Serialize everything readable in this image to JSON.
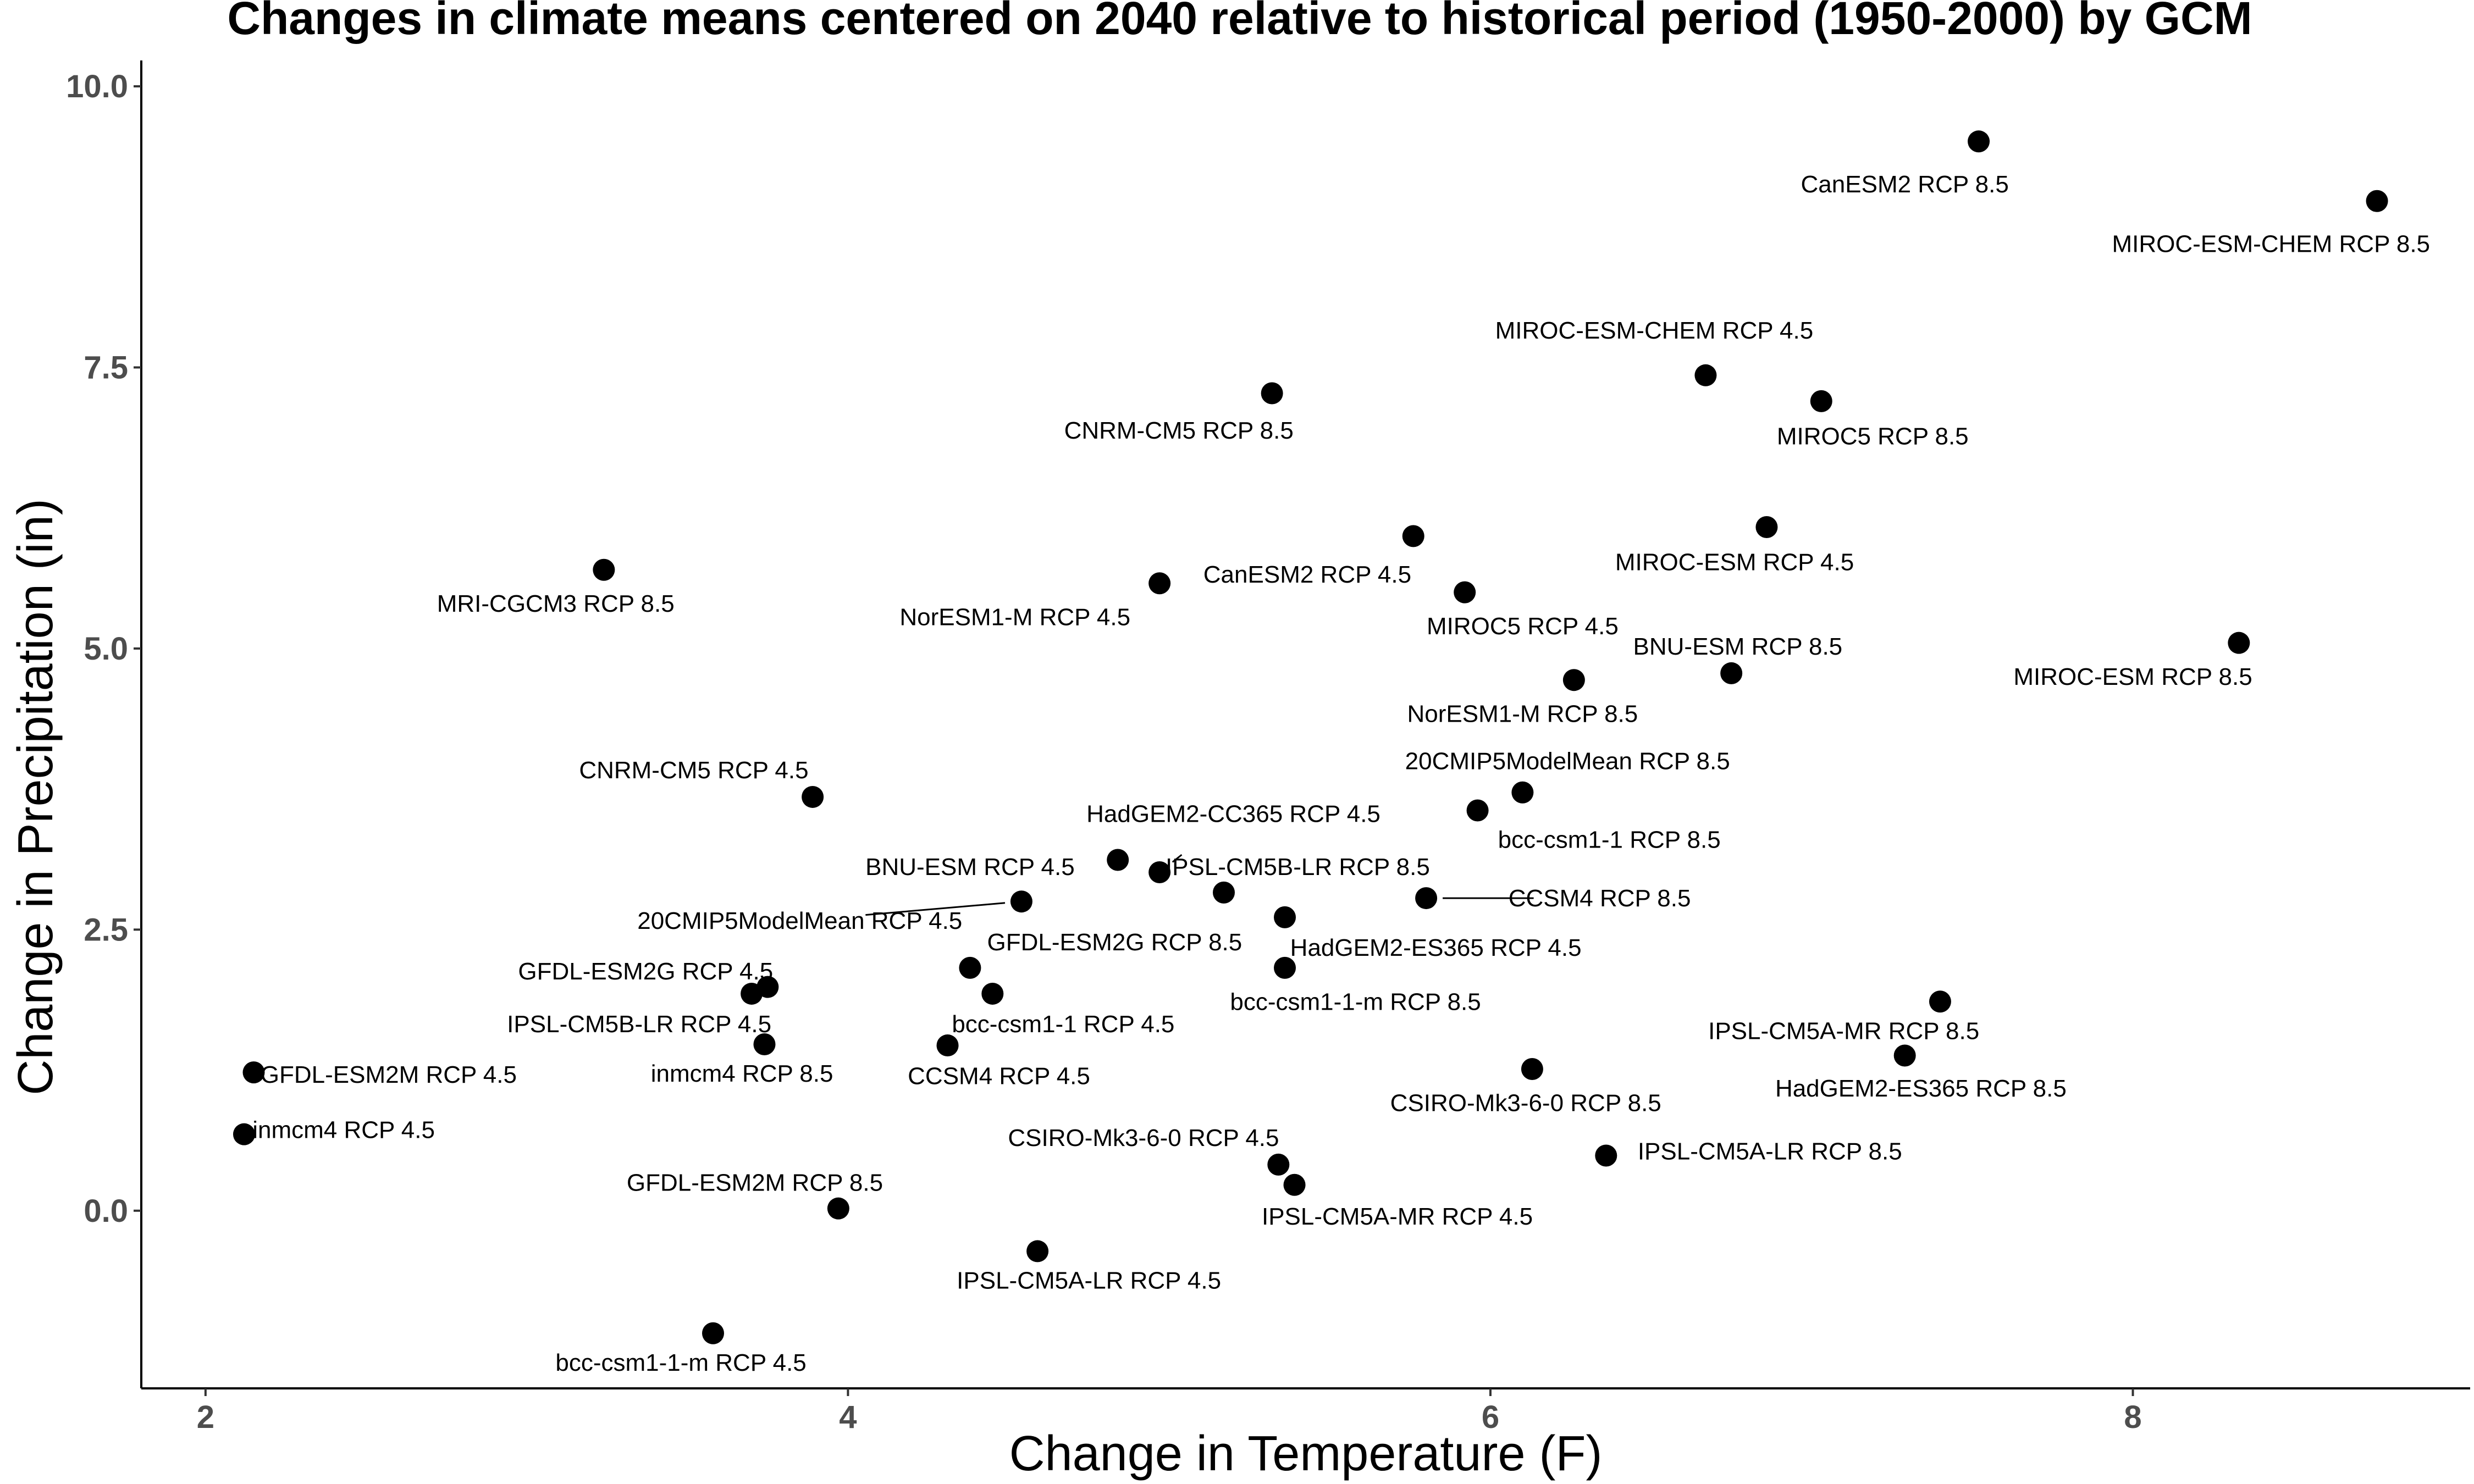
{
  "chart_data": {
    "type": "scatter",
    "title": "Changes in climate means centered on 2040 relative to historical period (1950-2000) by GCM",
    "xlabel": "Change in Temperature (F)",
    "ylabel": "Change in Precipitation (in)",
    "xlim": [
      1.8,
      9.05
    ],
    "ylim": [
      -1.58,
      10.23
    ],
    "xticks": [
      2,
      4,
      6,
      8
    ],
    "xtick_labels": [
      "2",
      "4",
      "6",
      "8"
    ],
    "yticks": [
      0,
      2.5,
      5,
      7.5,
      10
    ],
    "ytick_labels": [
      "0.0",
      "2.5",
      "5.0",
      "7.5",
      "10.0"
    ],
    "grid": false,
    "legend": "none",
    "point_color": "#000000",
    "points": [
      {
        "label": "CanESM2 RCP 8.5",
        "x": 7.52,
        "y": 9.51,
        "lx": 7.29,
        "ly": 9.13
      },
      {
        "label": "MIROC-ESM-CHEM RCP 8.5",
        "x": 8.76,
        "y": 8.98,
        "lx": 8.43,
        "ly": 8.6
      },
      {
        "label": "MIROC-ESM-CHEM RCP 4.5",
        "x": 6.67,
        "y": 7.43,
        "lx": 6.51,
        "ly": 7.83
      },
      {
        "label": "MIROC5 RCP 8.5",
        "x": 7.03,
        "y": 7.2,
        "lx": 7.19,
        "ly": 6.89
      },
      {
        "label": "CNRM-CM5 RCP 8.5",
        "x": 5.32,
        "y": 7.27,
        "lx": 5.03,
        "ly": 6.94
      },
      {
        "label": "MIROC-ESM RCP 4.5",
        "x": 6.86,
        "y": 6.08,
        "lx": 6.76,
        "ly": 5.77
      },
      {
        "label": "CanESM2 RCP 4.5",
        "x": 5.76,
        "y": 6.0,
        "lx": 5.43,
        "ly": 5.66
      },
      {
        "label": "MRI-CGCM3 RCP 8.5",
        "x": 3.24,
        "y": 5.7,
        "lx": 3.09,
        "ly": 5.4
      },
      {
        "label": "NorESM1-M RCP 4.5",
        "x": 4.97,
        "y": 5.58,
        "lx": 4.52,
        "ly": 5.28
      },
      {
        "label": "MIROC5 RCP 4.5",
        "x": 5.92,
        "y": 5.5,
        "lx": 6.1,
        "ly": 5.2
      },
      {
        "label": "BNU-ESM RCP 8.5",
        "x": 6.75,
        "y": 4.78,
        "lx": 6.77,
        "ly": 5.02
      },
      {
        "label": "MIROC-ESM RCP 8.5",
        "x": 8.33,
        "y": 5.05,
        "lx": 8.0,
        "ly": 4.75
      },
      {
        "label": "NorESM1-M RCP 8.5",
        "x": 6.26,
        "y": 4.72,
        "lx": 6.1,
        "ly": 4.42
      },
      {
        "label": "20CMIP5ModelMean RCP 8.5",
        "x": 6.1,
        "y": 3.72,
        "lx": 6.24,
        "ly": 4.0
      },
      {
        "label": "bcc-csm1-1 RCP 8.5",
        "x": 5.96,
        "y": 3.56,
        "lx": 6.37,
        "ly": 3.3
      },
      {
        "label": "CNRM-CM5 RCP 4.5",
        "x": 3.89,
        "y": 3.68,
        "lx": 3.52,
        "ly": 3.92
      },
      {
        "label": "HadGEM2-CC365 RCP 4.5",
        "x": 4.97,
        "y": 3.01,
        "lx": 5.2,
        "ly": 3.53,
        "leader": true
      },
      {
        "label": "BNU-ESM RCP 4.5",
        "x": 4.84,
        "y": 3.12,
        "lx": 4.38,
        "ly": 3.06
      },
      {
        "label": "IPSL-CM5B-LR RCP 8.5",
        "x": 5.17,
        "y": 2.83,
        "lx": 5.4,
        "ly": 3.06
      },
      {
        "label": "20CMIP5ModelMean RCP 4.5",
        "x": 4.54,
        "y": 2.75,
        "lx": 3.85,
        "ly": 2.58,
        "leader": true
      },
      {
        "label": "CCSM4 RCP 8.5",
        "x": 5.8,
        "y": 2.78,
        "lx": 6.34,
        "ly": 2.78,
        "leader": true
      },
      {
        "label": "HadGEM2-ES365 RCP 4.5",
        "x": 5.36,
        "y": 2.61,
        "lx": 5.83,
        "ly": 2.34
      },
      {
        "label": "GFDL-ESM2G RCP 8.5",
        "x": 4.38,
        "y": 2.16,
        "lx": 4.83,
        "ly": 2.39
      },
      {
        "label": "bcc-csm1-1-m RCP 8.5",
        "x": 5.36,
        "y": 2.16,
        "lx": 5.58,
        "ly": 1.86
      },
      {
        "label": "GFDL-ESM2G RCP 4.5",
        "x": 3.75,
        "y": 1.99,
        "lx": 3.37,
        "ly": 2.13
      },
      {
        "label": "IPSL-CM5B-LR RCP 4.5",
        "x": 3.7,
        "y": 1.93,
        "lx": 3.35,
        "ly": 1.66
      },
      {
        "label": "bcc-csm1-1 RCP 4.5",
        "x": 4.45,
        "y": 1.93,
        "lx": 4.67,
        "ly": 1.66
      },
      {
        "label": "inmcm4 RCP 8.5",
        "x": 3.74,
        "y": 1.48,
        "lx": 3.67,
        "ly": 1.22
      },
      {
        "label": "CCSM4 RCP 4.5",
        "x": 4.31,
        "y": 1.47,
        "lx": 4.47,
        "ly": 1.2
      },
      {
        "label": "GFDL-ESM2M RCP 4.5",
        "x": 2.15,
        "y": 1.23,
        "lx": 2.57,
        "ly": 1.21
      },
      {
        "label": "CSIRO-Mk3-6-0 RCP 8.5",
        "x": 6.13,
        "y": 1.26,
        "lx": 6.11,
        "ly": 0.96
      },
      {
        "label": "IPSL-CM5A-MR RCP 8.5",
        "x": 7.4,
        "y": 1.86,
        "lx": 7.1,
        "ly": 1.6
      },
      {
        "label": "HadGEM2-ES365 RCP 8.5",
        "x": 7.29,
        "y": 1.38,
        "lx": 7.34,
        "ly": 1.09
      },
      {
        "label": "inmcm4 RCP 4.5",
        "x": 2.12,
        "y": 0.68,
        "lx": 2.43,
        "ly": 0.72
      },
      {
        "label": "CSIRO-Mk3-6-0 RCP 4.5",
        "x": 5.34,
        "y": 0.41,
        "lx": 4.92,
        "ly": 0.65
      },
      {
        "label": "IPSL-CM5A-LR RCP 8.5",
        "x": 6.36,
        "y": 0.49,
        "lx": 6.87,
        "ly": 0.53
      },
      {
        "label": "IPSL-CM5A-MR RCP 4.5",
        "x": 5.39,
        "y": 0.23,
        "lx": 5.71,
        "ly": -0.05
      },
      {
        "label": "GFDL-ESM2M RCP 8.5",
        "x": 3.97,
        "y": 0.02,
        "lx": 3.71,
        "ly": 0.25
      },
      {
        "label": "IPSL-CM5A-LR RCP 4.5",
        "x": 4.59,
        "y": -0.36,
        "lx": 4.75,
        "ly": -0.62
      },
      {
        "label": "bcc-csm1-1-m RCP 4.5",
        "x": 3.58,
        "y": -1.09,
        "lx": 3.48,
        "ly": -1.35
      }
    ]
  }
}
